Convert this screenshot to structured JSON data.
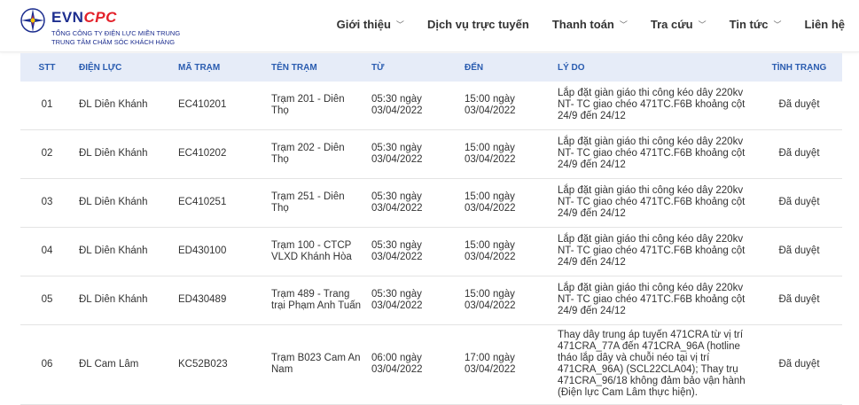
{
  "logo": {
    "brand_a": "EVN",
    "brand_b": "CPC",
    "line1": "TỔNG CÔNG TY ĐIỆN LỰC MIỀN TRUNG",
    "line2": "TRUNG TÂM CHĂM SÓC KHÁCH HÀNG"
  },
  "nav": [
    {
      "label": "Giới thiệu",
      "dropdown": true
    },
    {
      "label": "Dịch vụ trực tuyến",
      "dropdown": false
    },
    {
      "label": "Thanh toán",
      "dropdown": true
    },
    {
      "label": "Tra cứu",
      "dropdown": true
    },
    {
      "label": "Tin tức",
      "dropdown": true
    },
    {
      "label": "Liên hệ",
      "dropdown": false
    }
  ],
  "table": {
    "headers": [
      "STT",
      "ĐIỆN LỰC",
      "MÃ TRẠM",
      "TÊN TRẠM",
      "TỪ",
      "ĐẾN",
      "LÝ DO",
      "TÌNH TRẠNG"
    ],
    "rows": [
      [
        "01",
        "ĐL Diên Khánh",
        "EC410201",
        "Trạm 201 - Diên Thọ",
        "05:30 ngày 03/04/2022",
        "15:00 ngày 03/04/2022",
        "Lắp đặt giàn giáo thi công kéo dây 220kv NT- TC giao chéo 471TC.F6B khoảng cột 24/9 đến 24/12",
        "Đã duyệt"
      ],
      [
        "02",
        "ĐL Diên Khánh",
        "EC410202",
        "Trạm 202 - Diên Thọ",
        "05:30 ngày 03/04/2022",
        "15:00 ngày 03/04/2022",
        "Lắp đặt giàn giáo thi công kéo dây 220kv NT- TC giao chéo 471TC.F6B khoảng cột 24/9 đến 24/12",
        "Đã duyệt"
      ],
      [
        "03",
        "ĐL Diên Khánh",
        "EC410251",
        "Trạm 251 - Diên Thọ",
        "05:30 ngày 03/04/2022",
        "15:00 ngày 03/04/2022",
        "Lắp đặt giàn giáo thi công kéo dây 220kv NT- TC giao chéo 471TC.F6B khoảng cột 24/9 đến 24/12",
        "Đã duyệt"
      ],
      [
        "04",
        "ĐL Diên Khánh",
        "ED430100",
        "Trạm 100 - CTCP VLXD Khánh Hòa",
        "05:30 ngày 03/04/2022",
        "15:00 ngày 03/04/2022",
        "Lắp đặt giàn giáo thi công kéo dây 220kv NT- TC giao chéo 471TC.F6B khoảng cột 24/9 đến 24/12",
        "Đã duyệt"
      ],
      [
        "05",
        "ĐL Diên Khánh",
        "ED430489",
        "Trạm 489 - Trang trại Phạm Anh Tuấn",
        "05:30 ngày 03/04/2022",
        "15:00 ngày 03/04/2022",
        "Lắp đặt giàn giáo thi công kéo dây 220kv NT- TC giao chéo 471TC.F6B khoảng cột 24/9 đến 24/12",
        "Đã duyệt"
      ],
      [
        "06",
        "ĐL Cam Lâm",
        "KC52B023",
        "Trạm B023 Cam An Nam",
        "06:00 ngày 03/04/2022",
        "17:00 ngày 03/04/2022",
        "Thay dây trung áp tuyến 471CRA từ vị trí 471CRA_77A đến 471CRA_96A (hotline tháo lắp dây và chuỗi néo tại vị trí 471CRA_96A) (SCL22CLA04); Thay trụ 471CRA_96/18 không đảm bảo vận hành (Điện lực Cam Lâm thực hiện).",
        "Đã duyệt"
      ]
    ]
  }
}
